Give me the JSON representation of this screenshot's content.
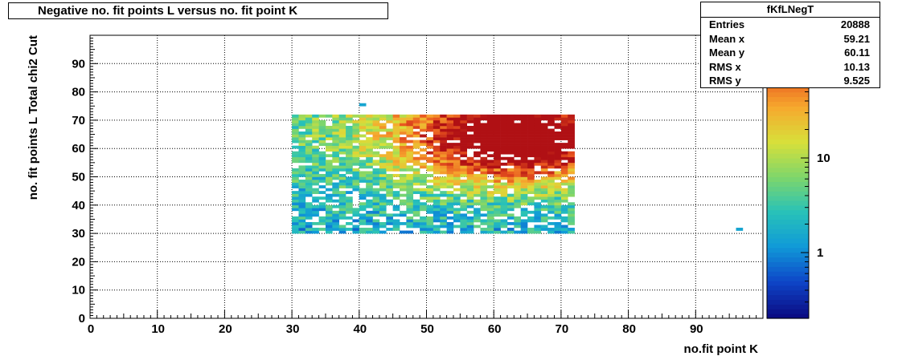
{
  "chart_data": {
    "type": "heatmap",
    "title": "Negative no. fit points L versus no. fit point K",
    "xlabel": "no.fit point K",
    "ylabel": "no. fit points  L   Total chi2 Cut",
    "xlim": [
      0,
      100
    ],
    "ylim": [
      0,
      100
    ],
    "x_ticks": [
      "0",
      "10",
      "20",
      "30",
      "40",
      "50",
      "60",
      "70",
      "80",
      "90"
    ],
    "y_ticks": [
      "0",
      "10",
      "20",
      "30",
      "40",
      "50",
      "60",
      "70",
      "80",
      "90"
    ],
    "grid": true,
    "log_z": true,
    "z_ticks": [
      "1",
      "10"
    ],
    "colormap": [
      "#0b0c84",
      "#0e46c8",
      "#109ad8",
      "#28c2b8",
      "#7fd66a",
      "#d7e03a",
      "#f6a92e",
      "#e8531f",
      "#b01014"
    ],
    "populated_region": {
      "x": [
        30,
        72
      ],
      "y": [
        30,
        72
      ]
    },
    "hotspot": {
      "x": 63,
      "y": 63
    },
    "outlier_cells": [
      {
        "x": 40,
        "y": 75,
        "level": "low"
      },
      {
        "x": 96,
        "y": 31,
        "level": "low"
      }
    ]
  },
  "stats": {
    "name": "fKfLNegT",
    "rows": [
      {
        "label": "Entries",
        "value": "20888"
      },
      {
        "label": "Mean x",
        "value": "59.21"
      },
      {
        "label": "Mean y",
        "value": "60.11"
      },
      {
        "label": "RMS x",
        "value": "10.13"
      },
      {
        "label": "RMS y",
        "value": "9.525"
      }
    ]
  }
}
